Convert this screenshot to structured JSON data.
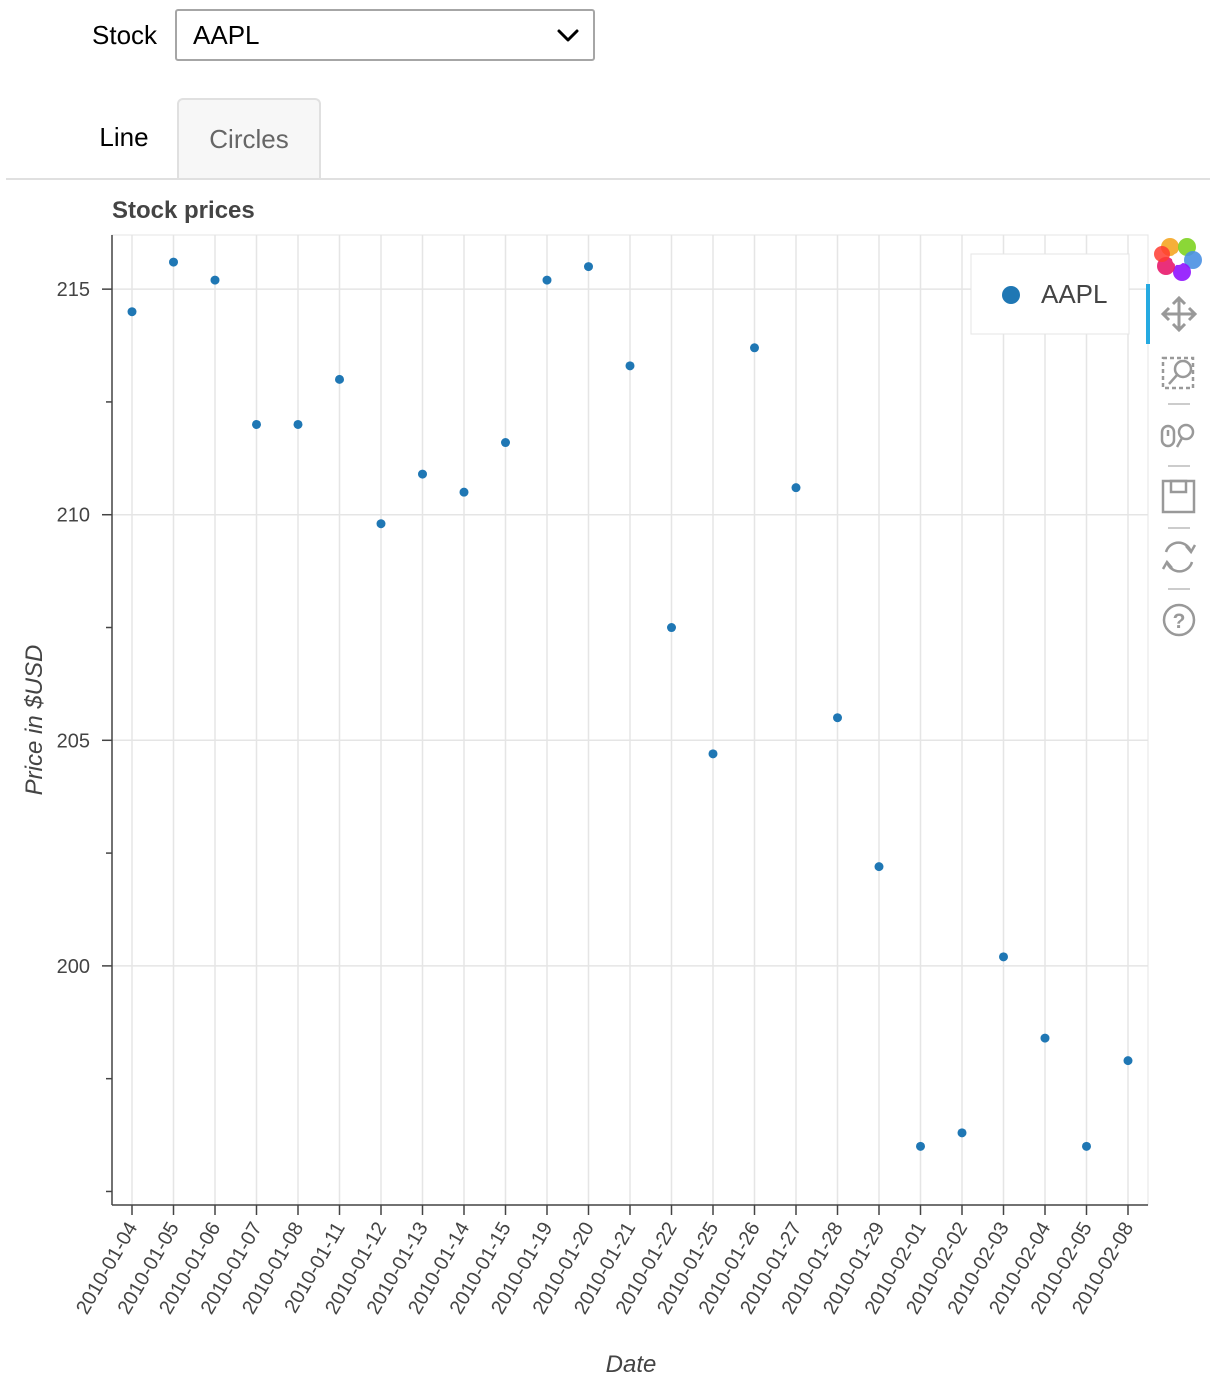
{
  "widget": {
    "label": "Stock",
    "selected": "AAPL"
  },
  "tabs": [
    {
      "label": "Line",
      "active": false
    },
    {
      "label": "Circles",
      "active": true
    }
  ],
  "toolbar": {
    "tools": [
      "bokeh-logo-icon",
      "pan-icon",
      "box-zoom-icon",
      "wheel-zoom-icon",
      "save-icon",
      "reset-icon",
      "help-icon"
    ]
  },
  "colors": {
    "series": "#1f77b4",
    "grid": "#e5e5e5",
    "axis": "#444444"
  },
  "chart_data": {
    "type": "scatter",
    "title": "Stock prices",
    "xlabel": "Date",
    "ylabel": "Price in $USD",
    "categories": [
      "2010-01-04",
      "2010-01-05",
      "2010-01-06",
      "2010-01-07",
      "2010-01-08",
      "2010-01-11",
      "2010-01-12",
      "2010-01-13",
      "2010-01-14",
      "2010-01-15",
      "2010-01-19",
      "2010-01-20",
      "2010-01-21",
      "2010-01-22",
      "2010-01-25",
      "2010-01-26",
      "2010-01-27",
      "2010-01-28",
      "2010-01-29",
      "2010-02-01",
      "2010-02-02",
      "2010-02-03",
      "2010-02-04",
      "2010-02-05",
      "2010-02-08"
    ],
    "series": [
      {
        "name": "AAPL",
        "values": [
          214.5,
          215.6,
          215.2,
          212.0,
          212.0,
          213.0,
          209.8,
          210.9,
          210.5,
          211.6,
          215.2,
          215.5,
          213.3,
          207.5,
          204.7,
          213.7,
          210.6,
          205.5,
          202.2,
          196.0,
          196.3,
          200.2,
          198.4,
          196.0,
          197.9
        ]
      }
    ],
    "yticks": [
      200,
      205,
      210,
      215
    ],
    "ylim": [
      194.7,
      216.2
    ],
    "grid": true,
    "legend": "top-right"
  }
}
